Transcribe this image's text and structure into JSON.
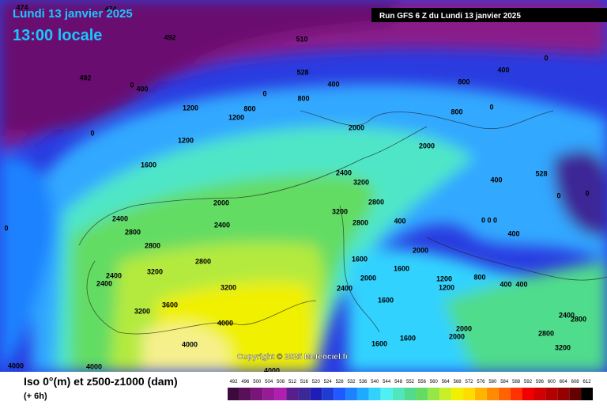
{
  "header": {
    "date": "Lundi 13 janvier 2025",
    "time": "13:00 locale",
    "run": "Run GFS 6 Z du Lundi 13 janvier 2025"
  },
  "copyright": "Copyright © 2025 Meteociel.fr",
  "map_labels": [
    "474",
    "474",
    "492",
    "492",
    "510",
    "528",
    "400",
    "0",
    "0",
    "800",
    "400",
    "1200",
    "800",
    "1200",
    "0",
    "1200",
    "1600",
    "2000",
    "2400",
    "3200",
    "2000",
    "2400",
    "2400",
    "2800",
    "2800",
    "3200",
    "2400",
    "2400",
    "2800",
    "3200",
    "3600",
    "3200",
    "4000",
    "4000",
    "4000",
    "4000",
    "4000",
    "2800",
    "3200",
    "2800",
    "400",
    "2000",
    "1600",
    "1600",
    "2000",
    "2400",
    "1200",
    "1600",
    "800",
    "400",
    "400",
    "2000",
    "1600",
    "1600",
    "2800",
    "3200",
    "2400",
    "2800",
    "0",
    "400",
    "800",
    "800",
    "2000",
    "0",
    "528",
    "400",
    "0",
    "0",
    "400",
    "0 0 0",
    "0",
    "1200",
    "2000"
  ],
  "legend": {
    "title": "Iso 0°(m) et z500-z1000 (dam)",
    "subtitle": "(+ 6h)",
    "ticks": [
      492,
      496,
      500,
      504,
      508,
      512,
      516,
      520,
      524,
      528,
      532,
      536,
      540,
      544,
      548,
      552,
      556,
      560,
      564,
      568,
      572,
      576,
      580,
      584,
      588,
      592,
      596,
      600,
      604,
      608,
      612
    ],
    "colors": [
      "#3c0a3c",
      "#5a0f5a",
      "#7a147a",
      "#961c96",
      "#b01fb0",
      "#5a1e8c",
      "#3c2896",
      "#1e1eb4",
      "#1e3cd2",
      "#1e5aff",
      "#1e82ff",
      "#1eaaff",
      "#32d2ff",
      "#50f0f0",
      "#50e6be",
      "#50dc8c",
      "#64dc64",
      "#96e646",
      "#c8f028",
      "#f0f000",
      "#ffdc00",
      "#ffb400",
      "#ff8c00",
      "#ff6400",
      "#ff3200",
      "#f00000",
      "#d20000",
      "#b40000",
      "#960000",
      "#640000",
      "#000000"
    ]
  }
}
